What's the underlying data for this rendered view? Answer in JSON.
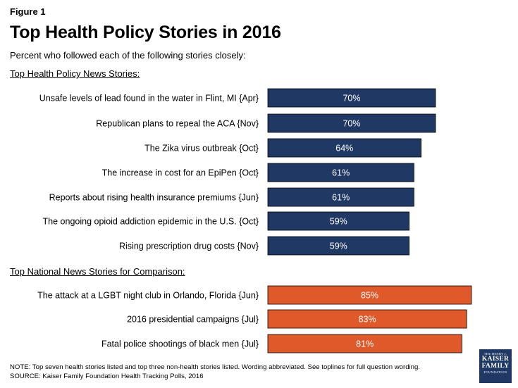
{
  "figure_label": "Figure 1",
  "chart_data": {
    "type": "bar",
    "orientation": "horizontal",
    "title": "Top Health Policy Stories in 2016",
    "subtitle": "Percent who followed each of the following stories closely:",
    "xlim": [
      0,
      100
    ],
    "groups": [
      {
        "name": "Top Health Policy News Stories:",
        "color": "#1f3864",
        "categories": [
          "Unsafe levels of lead found in the water in Flint, MI {Apr}",
          "Republican plans to repeal the ACA {Nov}",
          "The Zika virus outbreak {Oct}",
          "The increase in cost for an EpiPen {Oct}",
          "Reports about rising health insurance premiums {Jun}",
          "The ongoing opioid addiction epidemic in the U.S. {Oct}",
          "Rising prescription drug costs {Nov}"
        ],
        "values": [
          70,
          70,
          64,
          61,
          61,
          59,
          59
        ],
        "labels": [
          "70%",
          "70%",
          "64%",
          "61%",
          "61%",
          "59%",
          "59%"
        ]
      },
      {
        "name": "Top National News Stories for Comparison:",
        "color": "#e0592a",
        "categories": [
          "The attack at a LGBT night club in Orlando, Florida {Jun}",
          "2016 presidential campaigns {Jul}",
          "Fatal police shootings of black men {Jul}"
        ],
        "values": [
          85,
          83,
          81
        ],
        "labels": [
          "85%",
          "83%",
          "81%"
        ]
      }
    ]
  },
  "footnote": {
    "note": "NOTE: Top seven health stories listed and top three non-health stories listed. Wording abbreviated. See toplines for full question wording.",
    "source": "SOURCE: Kaiser Family Foundation Health Tracking Polls, 2016"
  },
  "logo": {
    "line1": "THE HENRY J.",
    "line2": "KAISER",
    "line3": "FAMILY",
    "line4": "FOUNDATION"
  }
}
